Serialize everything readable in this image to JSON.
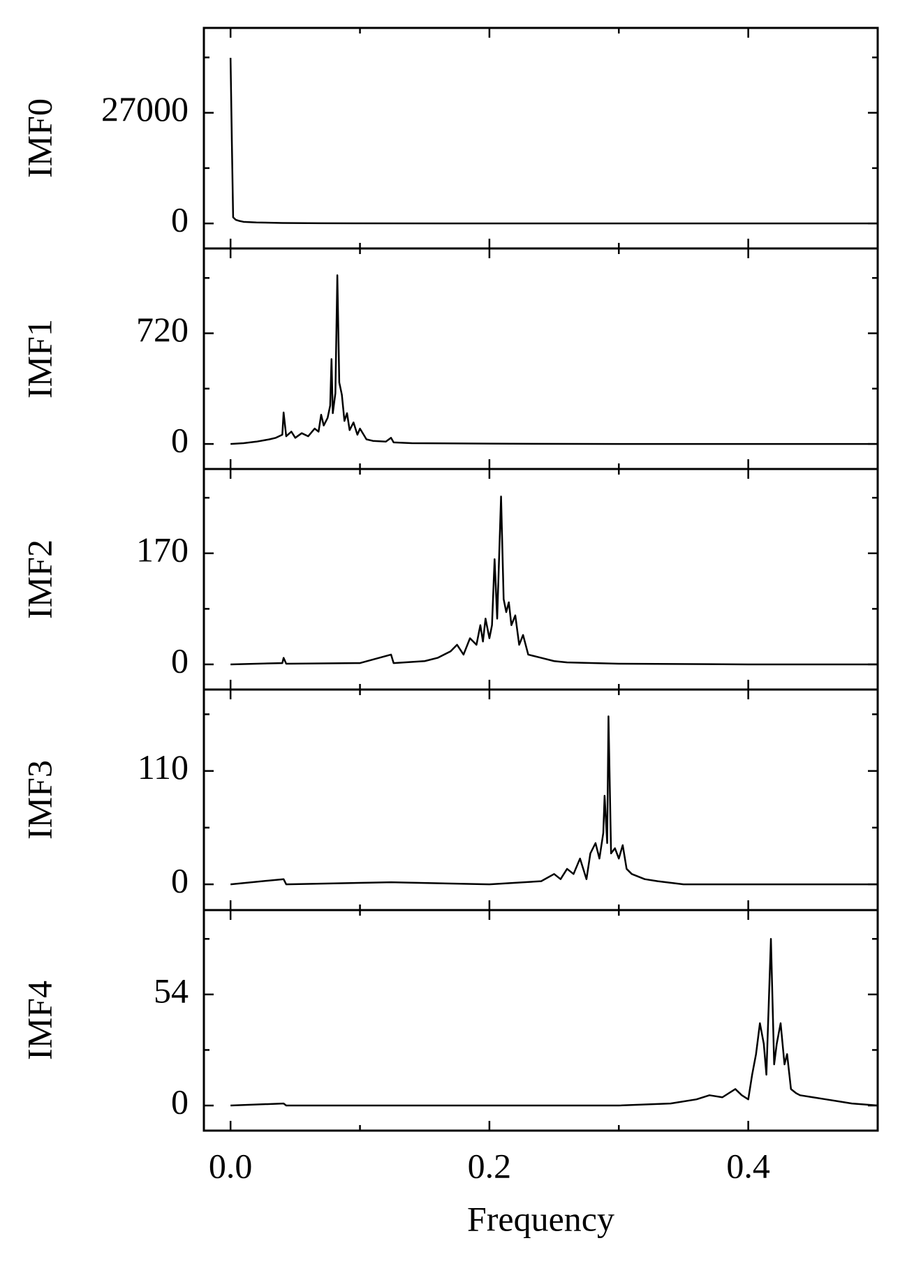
{
  "chart_data": [
    {
      "type": "line",
      "ylabel": "IMF0",
      "color": "#000000",
      "x": [
        0,
        0.001,
        0.002,
        0.004,
        0.007,
        0.01,
        0.02,
        0.04,
        0.07,
        0.1,
        0.2,
        0.3,
        0.4,
        0.5
      ],
      "values": [
        40400,
        20000,
        1500,
        900,
        600,
        400,
        250,
        120,
        60,
        30,
        10,
        5,
        3,
        0
      ],
      "xlim": [
        -0.0206,
        0.5
      ],
      "xticks": [
        {
          "value": 0,
          "label": "0.0"
        },
        0.2,
        0.4
      ],
      "xminor": [
        0.1,
        0.3
      ],
      "ylim": [
        -6100,
        47700
      ],
      "yticks": [
        0,
        27000
      ],
      "yminor": [
        13500,
        40500
      ]
    },
    {
      "type": "line",
      "ylabel": "IMF1",
      "color": "#000000",
      "x": [
        0,
        0.01,
        0.02,
        0.03,
        0.035,
        0.04,
        0.041,
        0.043,
        0.047,
        0.05,
        0.055,
        0.06,
        0.065,
        0.068,
        0.07,
        0.072,
        0.075,
        0.077,
        0.078,
        0.079,
        0.081,
        0.0825,
        0.084,
        0.086,
        0.088,
        0.09,
        0.092,
        0.095,
        0.098,
        0.1,
        0.105,
        0.11,
        0.12,
        0.124,
        0.126,
        0.14,
        0.2,
        0.3,
        0.5
      ],
      "values": [
        0,
        5,
        15,
        30,
        40,
        60,
        205,
        50,
        80,
        40,
        70,
        50,
        100,
        80,
        190,
        120,
        170,
        250,
        552,
        200,
        330,
        1098,
        400,
        320,
        150,
        200,
        90,
        140,
        60,
        100,
        30,
        20,
        15,
        40,
        10,
        5,
        2,
        0,
        0
      ],
      "xlim": [
        -0.0206,
        0.5
      ],
      "xticks": [
        {
          "value": 0,
          "label": "0.0"
        },
        0.2,
        0.4
      ],
      "xminor": [
        0.1,
        0.3
      ],
      "ylim": [
        -163,
        1272
      ],
      "yticks": [
        0,
        720
      ],
      "yminor": [
        360,
        1080
      ]
    },
    {
      "type": "line",
      "ylabel": "IMF2",
      "color": "#000000",
      "x": [
        0,
        0.04,
        0.041,
        0.043,
        0.1,
        0.124,
        0.126,
        0.15,
        0.16,
        0.17,
        0.175,
        0.18,
        0.185,
        0.19,
        0.193,
        0.195,
        0.197,
        0.2,
        0.202,
        0.204,
        0.206,
        0.209,
        0.211,
        0.213,
        0.215,
        0.217,
        0.22,
        0.223,
        0.226,
        0.23,
        0.24,
        0.25,
        0.26,
        0.3,
        0.4,
        0.5
      ],
      "values": [
        0,
        2,
        10,
        1,
        2,
        15,
        2,
        5,
        10,
        20,
        30,
        15,
        40,
        30,
        60,
        35,
        70,
        40,
        60,
        161,
        70,
        257,
        100,
        80,
        95,
        60,
        75,
        30,
        45,
        15,
        10,
        5,
        3,
        1,
        0,
        0
      ],
      "xlim": [
        -0.0206,
        0.5
      ],
      "xticks": [
        {
          "value": 0,
          "label": "0.0"
        },
        0.2,
        0.4
      ],
      "xminor": [
        0.1,
        0.3
      ],
      "ylim": [
        -38.5,
        299
      ],
      "yticks": [
        0,
        170
      ],
      "yminor": [
        85,
        255
      ]
    },
    {
      "type": "line",
      "ylabel": "IMF3",
      "color": "#000000",
      "x": [
        0,
        0.041,
        0.043,
        0.124,
        0.2,
        0.24,
        0.25,
        0.255,
        0.26,
        0.265,
        0.27,
        0.275,
        0.278,
        0.282,
        0.285,
        0.288,
        0.289,
        0.291,
        0.292,
        0.294,
        0.297,
        0.3,
        0.303,
        0.306,
        0.31,
        0.32,
        0.33,
        0.35,
        0.5
      ],
      "values": [
        0,
        5,
        0,
        2,
        0,
        3,
        10,
        5,
        15,
        10,
        25,
        5,
        30,
        40,
        25,
        50,
        86,
        40,
        163,
        30,
        35,
        25,
        38,
        15,
        10,
        5,
        3,
        0,
        0
      ],
      "xlim": [
        -0.0206,
        0.5
      ],
      "xticks": [
        {
          "value": 0,
          "label": "0.0"
        },
        0.2,
        0.4
      ],
      "xminor": [
        0.1,
        0.3
      ],
      "ylim": [
        -25,
        189
      ],
      "yticks": [
        0,
        110
      ],
      "yminor": [
        55,
        165
      ]
    },
    {
      "type": "line",
      "ylabel": "IMF4",
      "xlabel": "Frequency",
      "color": "#000000",
      "x": [
        0,
        0.041,
        0.043,
        0.3,
        0.34,
        0.36,
        0.37,
        0.38,
        0.39,
        0.395,
        0.4,
        0.403,
        0.406,
        0.409,
        0.412,
        0.414,
        0.4175,
        0.42,
        0.422,
        0.425,
        0.428,
        0.43,
        0.433,
        0.437,
        0.44,
        0.45,
        0.46,
        0.47,
        0.48,
        0.5
      ],
      "values": [
        0,
        1,
        0,
        0,
        1,
        3,
        5,
        4,
        8,
        5,
        3,
        15,
        25,
        40,
        30,
        15,
        81,
        20,
        30,
        40,
        20,
        25,
        8,
        6,
        5,
        4,
        3,
        2,
        1,
        0
      ],
      "xlim": [
        -0.0206,
        0.5
      ],
      "xticks": [
        {
          "value": 0,
          "label": "0.0"
        },
        0.2,
        0.4
      ],
      "xminor": [
        0.1,
        0.3
      ],
      "ylim": [
        -12.2,
        95
      ],
      "yticks": [
        0,
        54
      ],
      "yminor": [
        27,
        81
      ]
    }
  ]
}
